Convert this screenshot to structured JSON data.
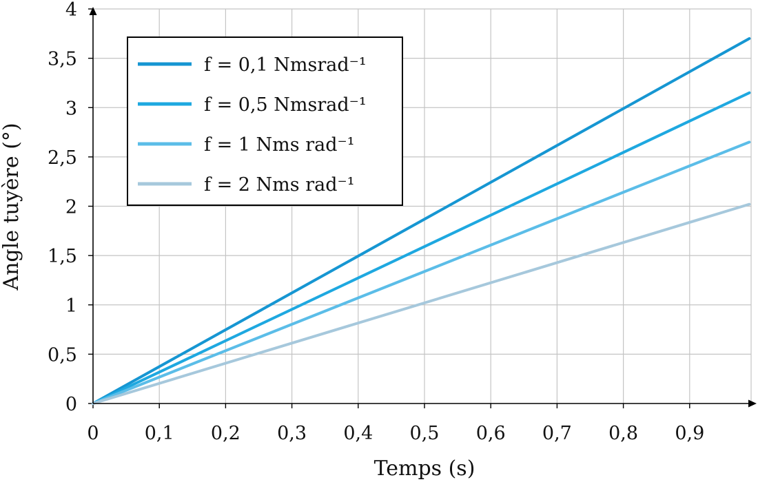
{
  "chart_data": {
    "type": "line",
    "xlabel": "Temps (s)",
    "ylabel": "Angle tuyère (°)",
    "xlim": [
      0,
      1
    ],
    "ylim": [
      0,
      4
    ],
    "x_ticks": [
      "0",
      "0,1",
      "0,2",
      "0,3",
      "0,4",
      "0,5",
      "0,6",
      "0,7",
      "0,8",
      "0,9"
    ],
    "y_ticks": [
      "0",
      "0,5",
      "1",
      "1,5",
      "2",
      "2,5",
      "3",
      "3,5",
      "4"
    ],
    "grid": true,
    "legend_position": "top-left",
    "series": [
      {
        "name": "f = 0,1 Nmsrad⁻¹",
        "color": "#1696d2",
        "x": [
          0,
          0.99
        ],
        "y": [
          0,
          3.7
        ]
      },
      {
        "name": "f = 0,5 Nmsrad⁻¹",
        "color": "#1ea8e0",
        "x": [
          0,
          0.99
        ],
        "y": [
          0,
          3.15
        ]
      },
      {
        "name": "f = 1 Nms rad⁻¹",
        "color": "#5bbde8",
        "x": [
          0,
          0.99
        ],
        "y": [
          0,
          2.65
        ]
      },
      {
        "name": "f = 2 Nms rad⁻¹",
        "color": "#a6c8dc",
        "x": [
          0,
          0.99
        ],
        "y": [
          0,
          2.02
        ]
      }
    ]
  }
}
